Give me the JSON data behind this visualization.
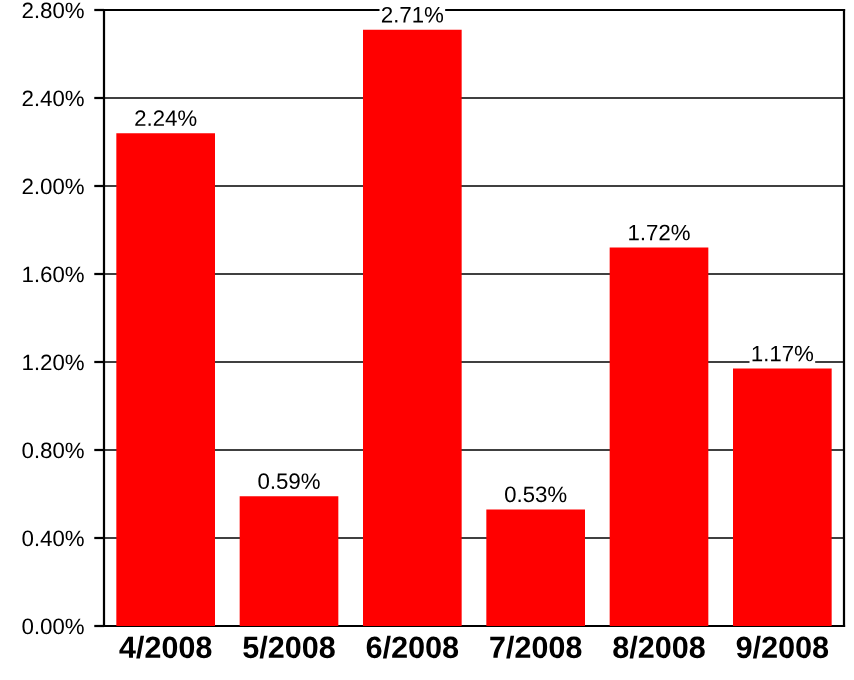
{
  "chart_data": {
    "type": "bar",
    "categories": [
      "4/2008",
      "5/2008",
      "6/2008",
      "7/2008",
      "8/2008",
      "9/2008"
    ],
    "values": [
      2.24,
      0.59,
      2.71,
      0.53,
      1.72,
      1.17
    ],
    "value_labels": [
      "2.24%",
      "0.59%",
      "2.71%",
      "0.53%",
      "1.72%",
      "1.17%"
    ],
    "color": "#ff0000",
    "ylim": [
      0,
      2.8
    ],
    "yticks": [
      {
        "value": 0,
        "label": "0.00%"
      },
      {
        "value": 0.4,
        "label": "0.40%"
      },
      {
        "value": 0.8,
        "label": "0.80%"
      },
      {
        "value": 1.2,
        "label": "1.20%"
      },
      {
        "value": 1.6,
        "label": "1.60%"
      },
      {
        "value": 2.0,
        "label": "2.00%"
      },
      {
        "value": 2.4,
        "label": "2.40%"
      },
      {
        "value": 2.8,
        "label": "2.80%"
      }
    ],
    "grid": "y",
    "legend": false
  }
}
